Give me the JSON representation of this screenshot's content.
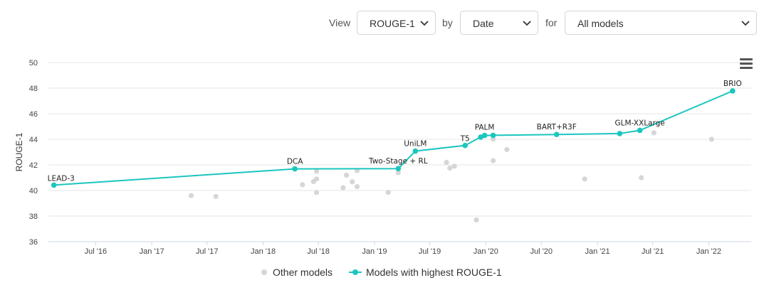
{
  "controls": {
    "view_label": "View",
    "view_value": "ROUGE-1",
    "by_label": "by",
    "by_value": "Date",
    "for_label": "for",
    "for_value": "All models"
  },
  "colors": {
    "highlight": "#1bc6bf",
    "other": "#d6d6d6",
    "grid": "#e6e6e6"
  },
  "chart_data": {
    "type": "line",
    "ylabel": "ROUGE-1",
    "ylim": [
      36,
      50
    ],
    "yticks": [
      36,
      38,
      40,
      42,
      44,
      46,
      48,
      50
    ],
    "xticks": [
      "Jul '16",
      "Jan '17",
      "Jul '17",
      "Jan '18",
      "Jul '18",
      "Jan '19",
      "Jul '19",
      "Jan '20",
      "Jul '20",
      "Jan '21",
      "Jul '21",
      "Jan '22"
    ],
    "xlim": [
      "2016-01-28",
      "2022-05-20"
    ],
    "grid": true,
    "legend": {
      "position": "bottom",
      "entries": [
        "Other models",
        "Models with highest ROUGE-1"
      ]
    },
    "series": [
      {
        "name": "Models with highest ROUGE-1",
        "points": [
          {
            "date": "2016-02-15",
            "value": 40.42,
            "label": "LEAD-3"
          },
          {
            "date": "2018-04-15",
            "value": 41.69,
            "label": "DCA"
          },
          {
            "date": "2019-03-20",
            "value": 41.71,
            "label": "Two-Stage + RL"
          },
          {
            "date": "2019-05-15",
            "value": 43.08,
            "label": "UniLM"
          },
          {
            "date": "2019-10-25",
            "value": 43.52,
            "label": "T5"
          },
          {
            "date": "2019-12-15",
            "value": 44.17,
            "label": ""
          },
          {
            "date": "2019-12-28",
            "value": 44.3,
            "label": "PALM"
          },
          {
            "date": "2020-01-25",
            "value": 44.31,
            "label": ""
          },
          {
            "date": "2020-08-20",
            "value": 44.38,
            "label": "BART+R3F"
          },
          {
            "date": "2021-03-15",
            "value": 44.45,
            "label": ""
          },
          {
            "date": "2021-05-20",
            "value": 44.7,
            "label": "GLM-XXLarge"
          },
          {
            "date": "2022-03-20",
            "value": 47.78,
            "label": "BRIO"
          }
        ]
      },
      {
        "name": "Other models",
        "points": [
          {
            "date": "2017-05-10",
            "value": 39.6
          },
          {
            "date": "2017-07-30",
            "value": 39.53
          },
          {
            "date": "2018-05-10",
            "value": 40.45
          },
          {
            "date": "2018-06-15",
            "value": 40.7
          },
          {
            "date": "2018-06-25",
            "value": 40.9
          },
          {
            "date": "2018-06-25",
            "value": 41.5
          },
          {
            "date": "2018-06-25",
            "value": 39.84
          },
          {
            "date": "2018-09-20",
            "value": 40.22
          },
          {
            "date": "2018-10-01",
            "value": 41.2
          },
          {
            "date": "2018-10-20",
            "value": 40.68
          },
          {
            "date": "2018-11-05",
            "value": 41.55
          },
          {
            "date": "2018-11-05",
            "value": 40.3
          },
          {
            "date": "2019-02-15",
            "value": 39.85
          },
          {
            "date": "2019-03-20",
            "value": 41.4
          },
          {
            "date": "2019-08-25",
            "value": 42.2
          },
          {
            "date": "2019-09-05",
            "value": 41.75
          },
          {
            "date": "2019-09-20",
            "value": 41.9
          },
          {
            "date": "2019-12-01",
            "value": 37.7
          },
          {
            "date": "2020-01-25",
            "value": 44.02
          },
          {
            "date": "2020-01-25",
            "value": 42.33
          },
          {
            "date": "2020-03-10",
            "value": 43.2
          },
          {
            "date": "2020-11-20",
            "value": 40.9
          },
          {
            "date": "2021-05-25",
            "value": 41.0
          },
          {
            "date": "2021-07-05",
            "value": 44.51
          },
          {
            "date": "2022-01-10",
            "value": 44.0
          }
        ]
      }
    ]
  }
}
